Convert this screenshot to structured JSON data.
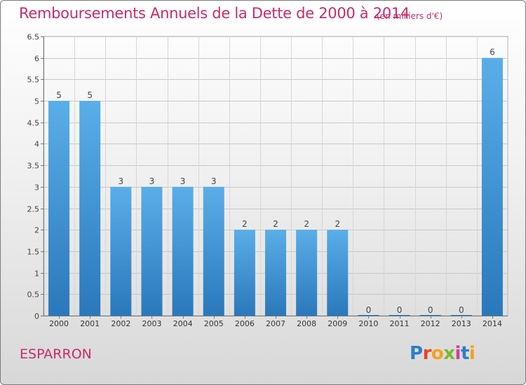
{
  "header": {
    "title": "Remboursements Annuels de la Dette de 2000 à 2014",
    "unit": "(en milliers d'€)"
  },
  "footer": {
    "commune": "ESPARRON",
    "logo_text": "Proxiti",
    "logo_colors": [
      "#2a7fc9",
      "#e8412c",
      "#f4a21c",
      "#7bb92e",
      "#d63ba0",
      "#2a7fc9",
      "#f4a21c"
    ]
  },
  "chart_data": {
    "type": "bar",
    "categories": [
      "2000",
      "2001",
      "2002",
      "2003",
      "2004",
      "2005",
      "2006",
      "2007",
      "2008",
      "2009",
      "2010",
      "2011",
      "2012",
      "2013",
      "2014"
    ],
    "values": [
      5,
      5,
      3,
      3,
      3,
      3,
      2,
      2,
      2,
      2,
      0,
      0,
      0,
      0,
      6
    ],
    "data_labels": [
      "5",
      "5",
      "3",
      "3",
      "3",
      "3",
      "2",
      "2",
      "2",
      "2",
      "0",
      "0",
      "0",
      "0",
      "6"
    ],
    "yticks": [
      0,
      0.5,
      1,
      1.5,
      2,
      2.5,
      3,
      3.5,
      4,
      4.5,
      5,
      5.5,
      6,
      6.5
    ],
    "ytick_labels": [
      "0",
      "0.5",
      "1",
      "1.5",
      "2",
      "2.5",
      "3",
      "3.5",
      "4",
      "4.5",
      "5",
      "5.5",
      "6",
      "6.5"
    ],
    "ylim": [
      0,
      6.5
    ],
    "grid": true,
    "bar_color_top": "#5aaee8",
    "bar_color_bottom": "#2a78bb"
  }
}
